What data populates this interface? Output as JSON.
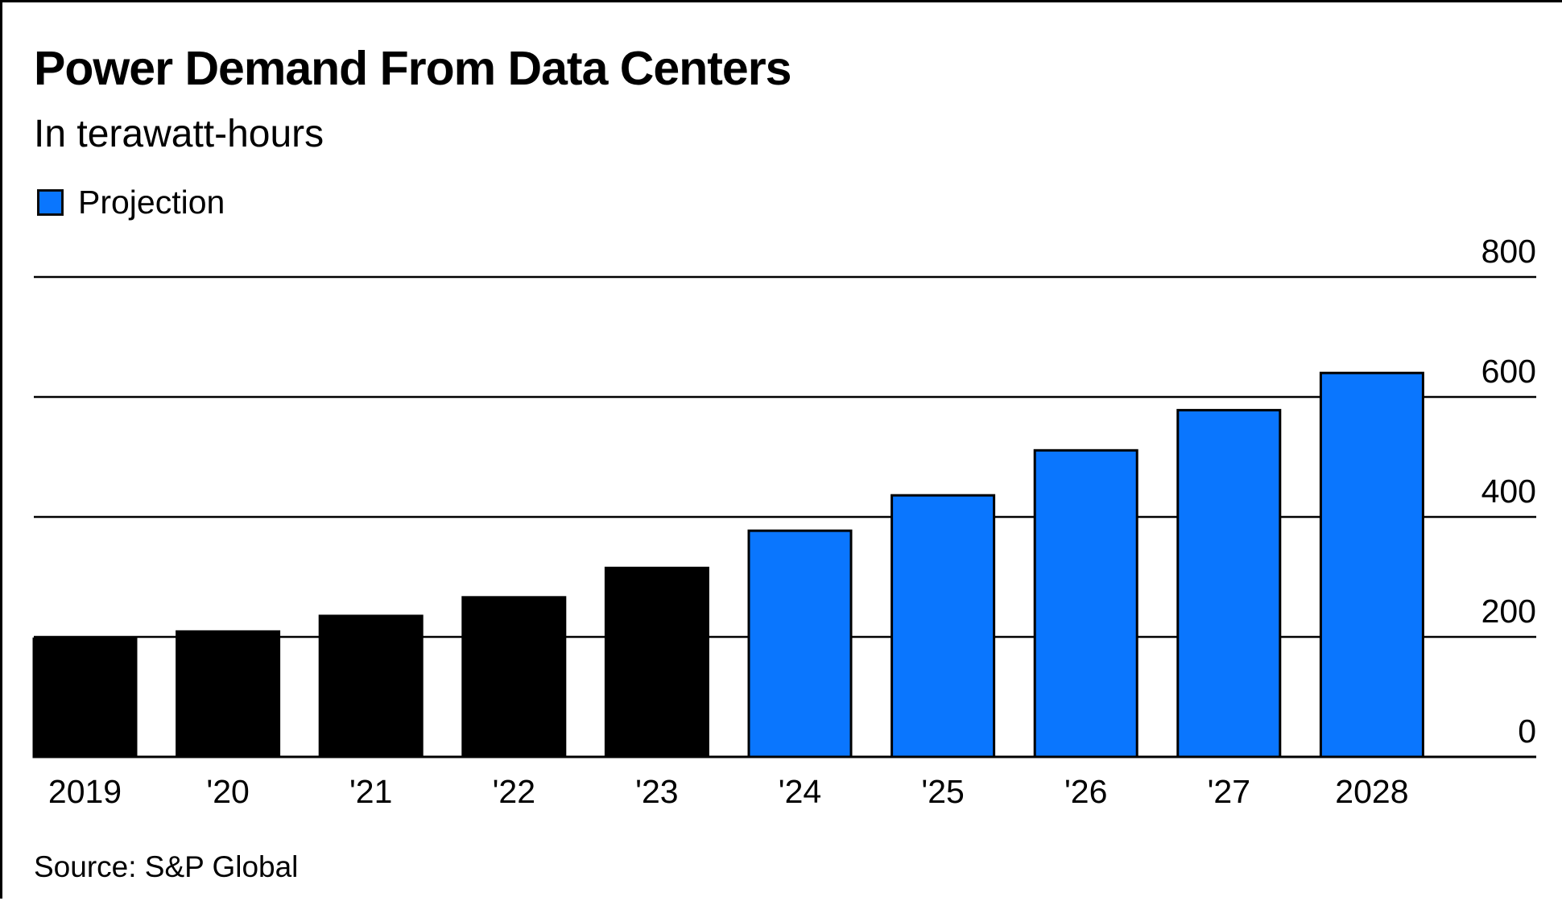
{
  "chart_data": {
    "type": "bar",
    "title": "Power Demand From Data Centers",
    "subtitle": "In terawatt-hours",
    "categories": [
      "2019",
      "'20",
      "'21",
      "'22",
      "'23",
      "'24",
      "'25",
      "'26",
      "'27",
      "2028"
    ],
    "values": [
      197,
      209,
      235,
      266,
      315,
      377,
      436,
      511,
      578,
      640
    ],
    "projection": [
      false,
      false,
      false,
      false,
      false,
      true,
      true,
      true,
      true,
      true
    ],
    "ylim": [
      0,
      800
    ],
    "y_ticks": [
      0,
      200,
      400,
      600,
      800
    ],
    "y_axis_side": "right",
    "grid": true,
    "legend": {
      "label": "Projection",
      "position": "top-left"
    },
    "colors": {
      "actual": "#000000",
      "projection": "#0a76fe",
      "grid": "#000000"
    },
    "source": "Source: S&P Global"
  }
}
